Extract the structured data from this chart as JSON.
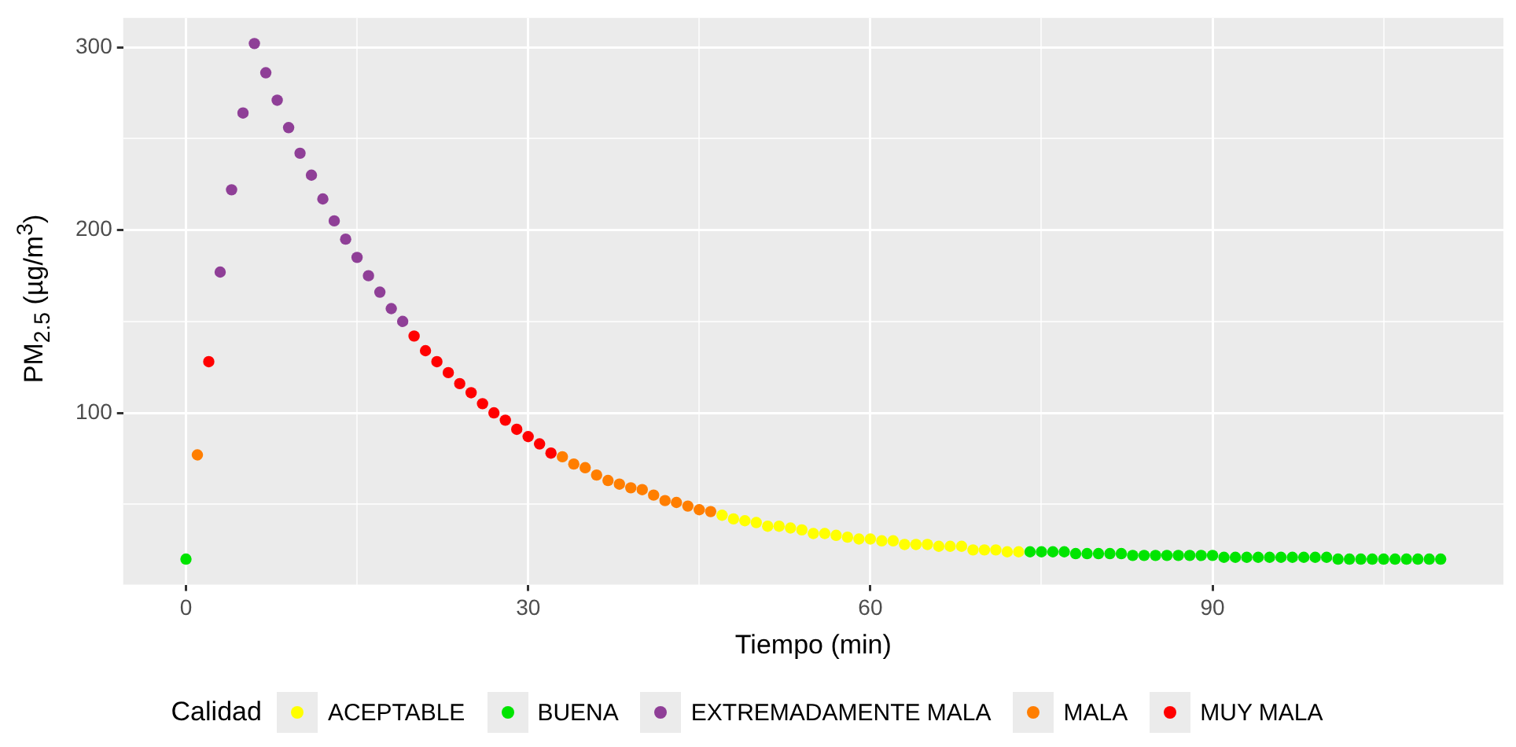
{
  "chart_data": {
    "type": "scatter",
    "xlabel": "Tiempo (min)",
    "ylabel": "PM$_{2.5}$ (µg/m$^{3}$)",
    "legend_title": "Calidad",
    "legend": "bottom",
    "grid": true,
    "marker": "circle",
    "xlim": [
      -5.5,
      115.5
    ],
    "xticks": [
      0,
      {
        "value": 15,
        "label": null
      },
      30,
      {
        "value": 45,
        "label": null
      },
      60,
      {
        "value": 75,
        "label": null
      },
      90,
      {
        "value": 105,
        "label": null
      }
    ],
    "ylim": [
      6,
      316
    ],
    "yticks": [
      {
        "value": 50,
        "label": null
      },
      100,
      {
        "value": 150,
        "label": null
      },
      200,
      {
        "value": 250,
        "label": null
      },
      300
    ],
    "series": [
      {
        "name": "ACEPTABLE",
        "color": "#ffff00",
        "x": [
          47,
          48,
          49,
          50,
          51,
          52,
          53,
          54,
          55,
          56,
          57,
          58,
          59,
          60,
          61,
          62,
          63,
          64,
          65,
          66,
          67,
          68,
          69,
          70,
          71,
          72,
          73
        ],
        "values": [
          44,
          42,
          41,
          40,
          38,
          38,
          37,
          36,
          34,
          34,
          33,
          32,
          31,
          31,
          30,
          30,
          28,
          28,
          28,
          27,
          27,
          27,
          25,
          25,
          25,
          24,
          24
        ]
      },
      {
        "name": "BUENA",
        "color": "#00e400",
        "x": [
          0,
          74,
          75,
          76,
          77,
          78,
          79,
          80,
          81,
          82,
          83,
          84,
          85,
          86,
          87,
          88,
          89,
          90,
          91,
          92,
          93,
          94,
          95,
          96,
          97,
          98,
          99,
          100,
          101,
          102,
          103,
          104,
          105,
          106,
          107,
          108,
          109,
          110
        ],
        "values": [
          20,
          24,
          24,
          24,
          24,
          23,
          23,
          23,
          23,
          23,
          22,
          22,
          22,
          22,
          22,
          22,
          22,
          22,
          21,
          21,
          21,
          21,
          21,
          21,
          21,
          21,
          21,
          21,
          20,
          20,
          20,
          20,
          20,
          20,
          20,
          20,
          20,
          20
        ]
      },
      {
        "name": "EXTREMADAMENTE MALA",
        "color": "#8f3f97",
        "x": [
          3,
          4,
          5,
          6,
          7,
          8,
          9,
          10,
          11,
          12,
          13,
          14,
          15,
          16,
          17,
          18,
          19
        ],
        "values": [
          177,
          222,
          264,
          302,
          286,
          271,
          256,
          242,
          230,
          217,
          205,
          195,
          185,
          175,
          166,
          157,
          150
        ]
      },
      {
        "name": "MALA",
        "color": "#ff7e00",
        "x": [
          1,
          33,
          34,
          35,
          36,
          37,
          38,
          39,
          40,
          41,
          42,
          43,
          44,
          45,
          46
        ],
        "values": [
          77,
          76,
          72,
          70,
          66,
          63,
          61,
          59,
          58,
          55,
          52,
          51,
          49,
          47,
          46
        ]
      },
      {
        "name": "MUY MALA",
        "color": "#ff0000",
        "x": [
          2,
          20,
          21,
          22,
          23,
          24,
          25,
          26,
          27,
          28,
          29,
          30,
          31,
          32
        ],
        "values": [
          128,
          142,
          134,
          128,
          122,
          116,
          111,
          105,
          100,
          96,
          91,
          87,
          83,
          78
        ]
      }
    ]
  }
}
